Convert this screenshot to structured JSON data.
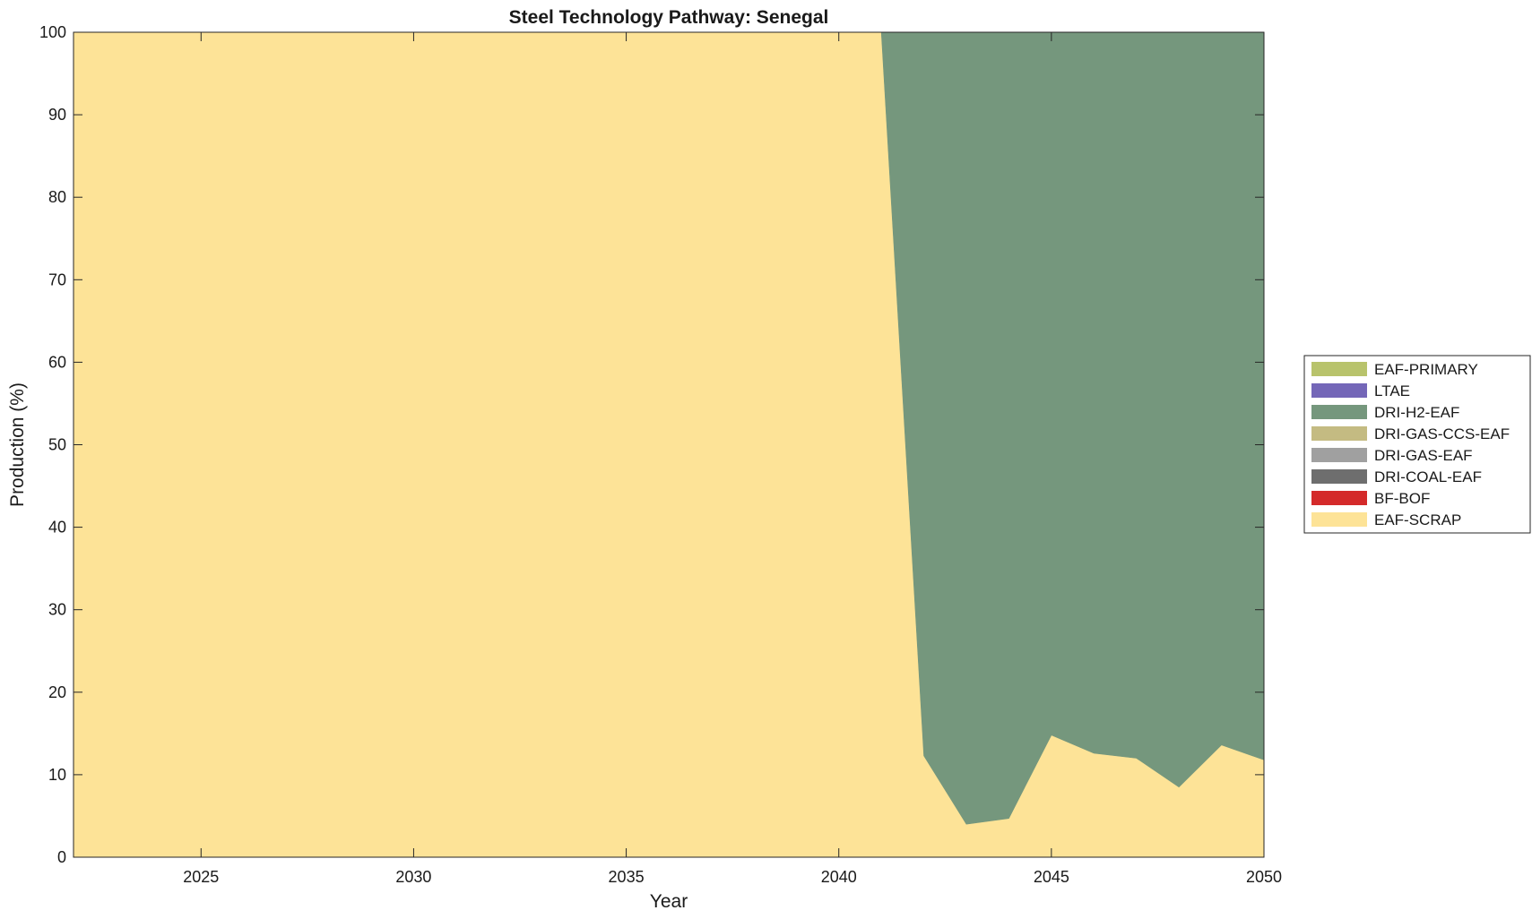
{
  "chart_data": {
    "type": "area",
    "stacked": true,
    "title": "Steel Technology Pathway: Senegal",
    "xlabel": "Year",
    "ylabel": "Production (%)",
    "xlim": [
      2022,
      2050
    ],
    "ylim": [
      0,
      100
    ],
    "x_ticks": [
      2025,
      2030,
      2035,
      2040,
      2045,
      2050
    ],
    "y_ticks": [
      0,
      10,
      20,
      30,
      40,
      50,
      60,
      70,
      80,
      90,
      100
    ],
    "grid": false,
    "legend_position": "right",
    "x": [
      2022,
      2023,
      2024,
      2025,
      2026,
      2027,
      2028,
      2029,
      2030,
      2031,
      2032,
      2033,
      2034,
      2035,
      2036,
      2037,
      2038,
      2039,
      2040,
      2041,
      2042,
      2043,
      2044,
      2045,
      2046,
      2047,
      2048,
      2049,
      2050
    ],
    "series": [
      {
        "name": "EAF-SCRAP",
        "color": "#FDE397",
        "values": [
          100,
          100,
          100,
          100,
          100,
          100,
          100,
          100,
          100,
          100,
          100,
          100,
          100,
          100,
          100,
          100,
          100,
          100,
          100,
          100,
          12.3,
          4.0,
          4.7,
          14.8,
          12.6,
          12.0,
          8.5,
          13.6,
          11.8
        ]
      },
      {
        "name": "BF-BOF",
        "color": "#D42A2A",
        "values": [
          0,
          0,
          0,
          0,
          0,
          0,
          0,
          0,
          0,
          0,
          0,
          0,
          0,
          0,
          0,
          0,
          0,
          0,
          0,
          0,
          0,
          0,
          0,
          0,
          0,
          0,
          0,
          0,
          0
        ]
      },
      {
        "name": "DRI-COAL-EAF",
        "color": "#6E6E6E",
        "values": [
          0,
          0,
          0,
          0,
          0,
          0,
          0,
          0,
          0,
          0,
          0,
          0,
          0,
          0,
          0,
          0,
          0,
          0,
          0,
          0,
          0,
          0,
          0,
          0,
          0,
          0,
          0,
          0,
          0
        ]
      },
      {
        "name": "DRI-GAS-EAF",
        "color": "#A0A0A0",
        "values": [
          0,
          0,
          0,
          0,
          0,
          0,
          0,
          0,
          0,
          0,
          0,
          0,
          0,
          0,
          0,
          0,
          0,
          0,
          0,
          0,
          0,
          0,
          0,
          0,
          0,
          0,
          0,
          0,
          0
        ]
      },
      {
        "name": "DRI-GAS-CCS-EAF",
        "color": "#C4BB82",
        "values": [
          0,
          0,
          0,
          0,
          0,
          0,
          0,
          0,
          0,
          0,
          0,
          0,
          0,
          0,
          0,
          0,
          0,
          0,
          0,
          0,
          0,
          0,
          0,
          0,
          0,
          0,
          0,
          0,
          0
        ]
      },
      {
        "name": "DRI-H2-EAF",
        "color": "#75977D",
        "values": [
          0,
          0,
          0,
          0,
          0,
          0,
          0,
          0,
          0,
          0,
          0,
          0,
          0,
          0,
          0,
          0,
          0,
          0,
          0,
          0,
          87.7,
          96.0,
          95.3,
          85.2,
          87.4,
          88.0,
          91.5,
          86.4,
          88.2
        ]
      },
      {
        "name": "LTAE",
        "color": "#7467B8",
        "values": [
          0,
          0,
          0,
          0,
          0,
          0,
          0,
          0,
          0,
          0,
          0,
          0,
          0,
          0,
          0,
          0,
          0,
          0,
          0,
          0,
          0,
          0,
          0,
          0,
          0,
          0,
          0,
          0,
          0
        ]
      },
      {
        "name": "EAF-PRIMARY",
        "color": "#B8C36C",
        "values": [
          0,
          0,
          0,
          0,
          0,
          0,
          0,
          0,
          0,
          0,
          0,
          0,
          0,
          0,
          0,
          0,
          0,
          0,
          0,
          0,
          0,
          0,
          0,
          0,
          0,
          0,
          0,
          0,
          0
        ]
      }
    ],
    "legend_order": [
      "EAF-PRIMARY",
      "LTAE",
      "DRI-H2-EAF",
      "DRI-GAS-CCS-EAF",
      "DRI-GAS-EAF",
      "DRI-COAL-EAF",
      "BF-BOF",
      "EAF-SCRAP"
    ]
  }
}
